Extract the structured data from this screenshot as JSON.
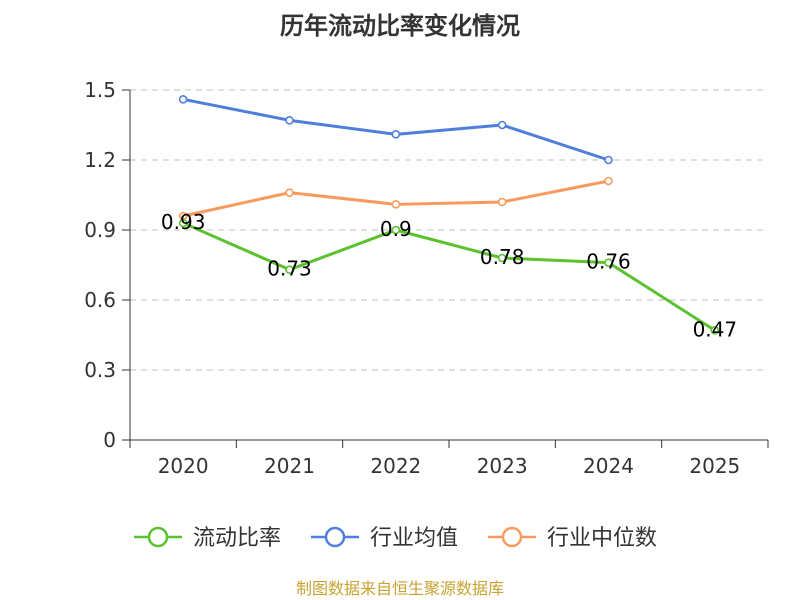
{
  "chart_data": {
    "type": "line",
    "title": "历年流动比率变化情况",
    "categories": [
      "2020",
      "2021",
      "2022",
      "2023",
      "2024",
      "2025"
    ],
    "ylim": [
      0,
      1.5
    ],
    "yticks": [
      "0",
      "0.3",
      "0.6",
      "0.9",
      "1.2",
      "1.5"
    ],
    "ytick_values": [
      0,
      0.3,
      0.6,
      0.9,
      1.2,
      1.5
    ],
    "grid": true,
    "legend_position": "bottom",
    "series": [
      {
        "name": "流动比率",
        "color": "#5cc12e",
        "values": [
          0.93,
          0.73,
          0.9,
          0.78,
          0.76,
          0.47
        ],
        "labels": [
          "0.93",
          "0.73",
          "0.9",
          "0.78",
          "0.76",
          "0.47"
        ]
      },
      {
        "name": "行业均值",
        "color": "#4f7fdd",
        "values": [
          1.46,
          1.37,
          1.31,
          1.35,
          1.2,
          null
        ]
      },
      {
        "name": "行业中位数",
        "color": "#f79a5e",
        "values": [
          0.96,
          1.06,
          1.01,
          1.02,
          1.11,
          null
        ]
      }
    ],
    "source": "制图数据来自恒生聚源数据库"
  }
}
